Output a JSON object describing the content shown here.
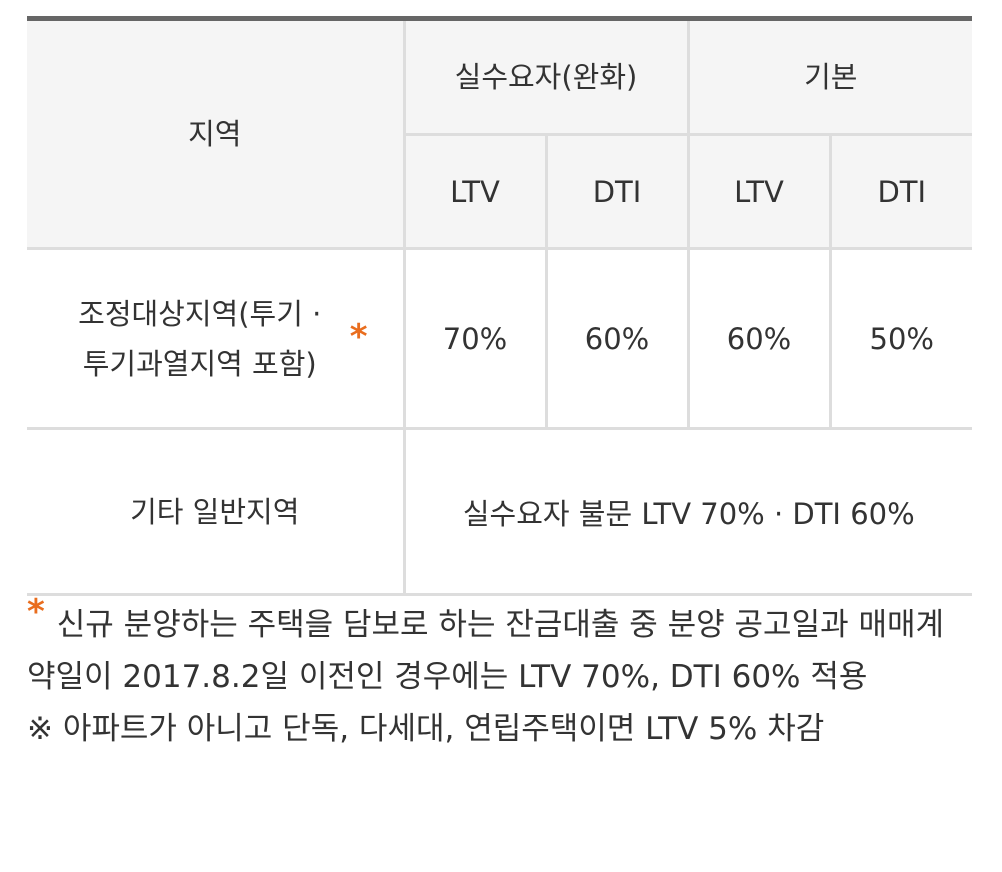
{
  "table": {
    "header": {
      "region": "지역",
      "group_relaxed": "실수요자(완화)",
      "group_basic": "기본",
      "relaxed_ltv": "LTV",
      "relaxed_dti": "DTI",
      "basic_ltv": "LTV",
      "basic_dti": "DTI"
    },
    "rows": [
      {
        "region_line1": "조정대상지역(투기 ·",
        "region_line2": "투기과열지역 포함)",
        "star": "*",
        "relaxed_ltv": "70%",
        "relaxed_dti": "60%",
        "basic_ltv": "60%",
        "basic_dti": "50%"
      },
      {
        "region": "기타 일반지역",
        "merged_value": "실수요자 불문 LTV 70% · DTI 60%"
      }
    ]
  },
  "notes": {
    "star": "*",
    "note1": "신규 분양하는 주택을 담보로 하는 잔금대출 중 분양 공고일과 매매계약일이 2017.8.2일 이전인 경우에는 LTV 70%, DTI 60% 적용",
    "note2": "※ 아파트가 아니고 단독, 다세대, 연립주택이면 LTV 5% 차감"
  },
  "colors": {
    "accent_star": "#e96d1e",
    "header_bg": "#f5f5f5",
    "top_border": "#666666",
    "grid_line": "#dddddd"
  }
}
